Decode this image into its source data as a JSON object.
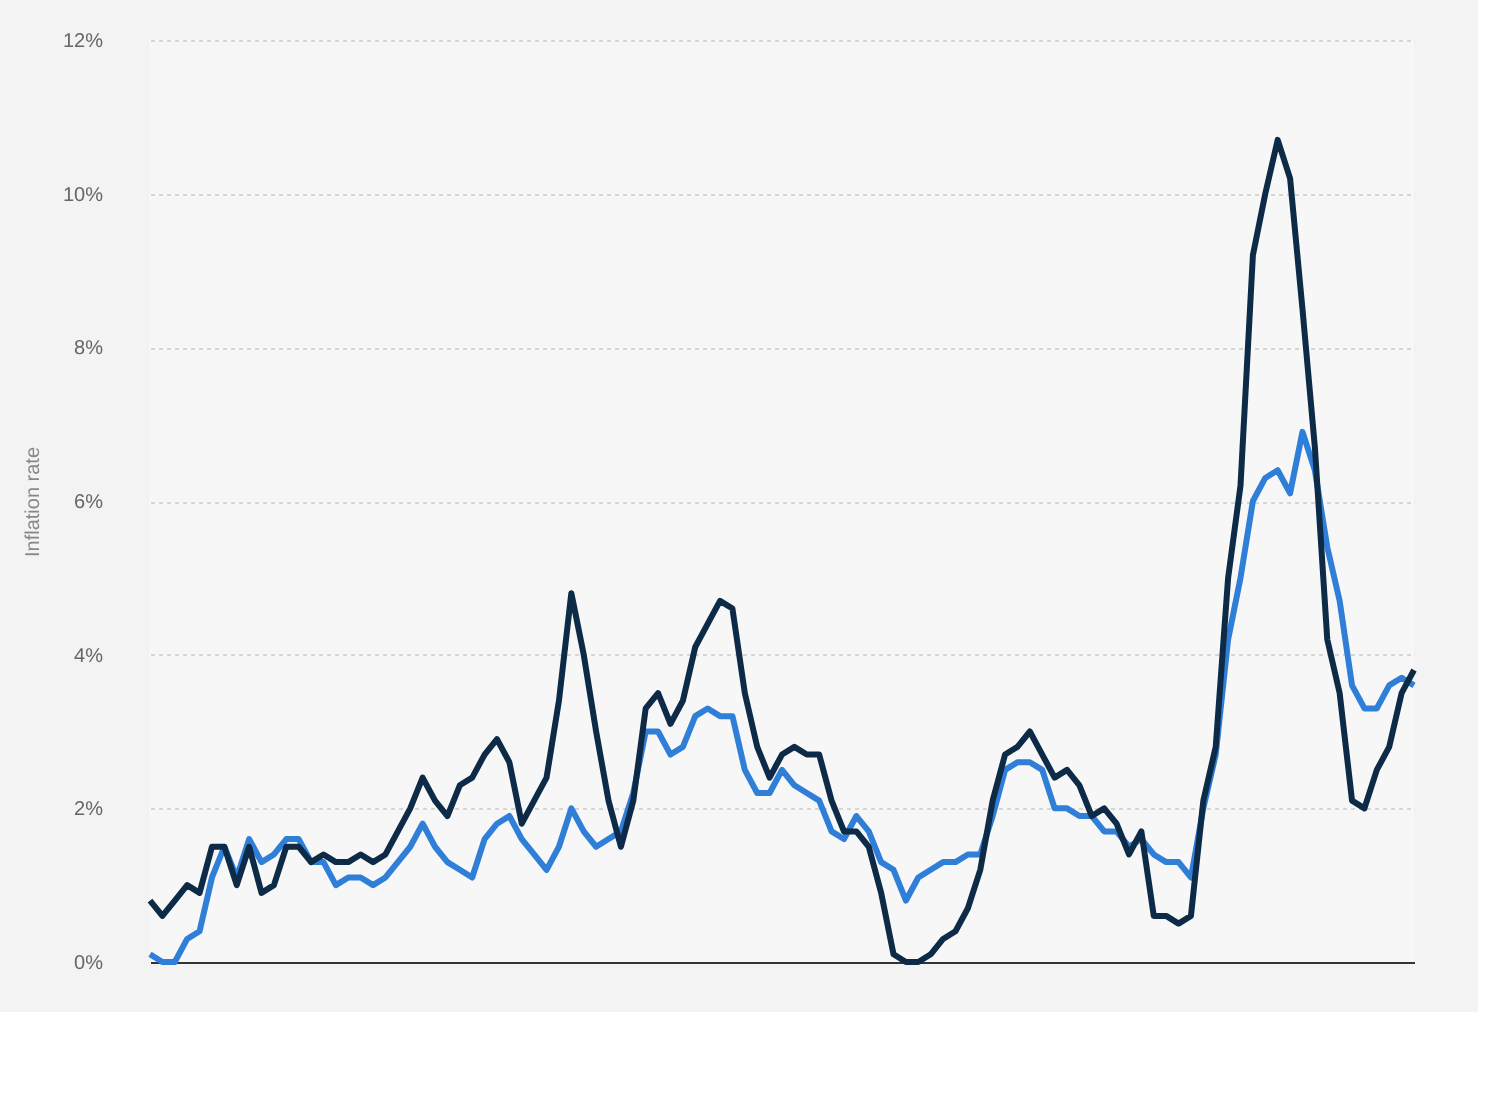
{
  "chart_data": {
    "type": "line",
    "ylabel": "Inflation rate",
    "categories": [
      null,
      null,
      null,
      null,
      null,
      null,
      null,
      null,
      null,
      null,
      null,
      null,
      null,
      null,
      null,
      null,
      null,
      null,
      null,
      null,
      null,
      null,
      null,
      null,
      null,
      null,
      null,
      null,
      null,
      null,
      null,
      null,
      null,
      null,
      null,
      null,
      null,
      null,
      null,
      null,
      null,
      null,
      null,
      null,
      null,
      null,
      null,
      null,
      null,
      null,
      null,
      null,
      null,
      null,
      null,
      null,
      null,
      null,
      null,
      null,
      null,
      null,
      null,
      null,
      null,
      null,
      null,
      null,
      null,
      null,
      null,
      null,
      null,
      null,
      null,
      null,
      null,
      null,
      null,
      null,
      null,
      null,
      null,
      null,
      null,
      null,
      null,
      null,
      null,
      null,
      null,
      null,
      null,
      null,
      null,
      null,
      null,
      null,
      null,
      null,
      null,
      null,
      null
    ],
    "series": [
      {
        "color": "#2f7ed8",
        "values": [
          0.1,
          0.0,
          0.0,
          0.3,
          0.4,
          1.1,
          1.5,
          1.1,
          1.6,
          1.3,
          1.4,
          1.6,
          1.6,
          1.3,
          1.3,
          1.0,
          1.1,
          1.1,
          1.0,
          1.1,
          1.3,
          1.5,
          1.8,
          1.5,
          1.3,
          1.2,
          1.1,
          1.6,
          1.8,
          1.9,
          1.6,
          1.4,
          1.2,
          1.5,
          2.0,
          1.7,
          1.5,
          1.6,
          1.7,
          2.2,
          3.0,
          3.0,
          2.7,
          2.8,
          3.2,
          3.3,
          3.2,
          3.2,
          2.5,
          2.2,
          2.2,
          2.5,
          2.3,
          2.2,
          2.1,
          1.7,
          1.6,
          1.9,
          1.7,
          1.3,
          1.2,
          0.8,
          1.1,
          1.2,
          1.3,
          1.3,
          1.4,
          1.4,
          1.9,
          2.5,
          2.6,
          2.6,
          2.5,
          2.0,
          2.0,
          1.9,
          1.9,
          1.7,
          1.7,
          1.5,
          1.6,
          1.4,
          1.3,
          1.3,
          1.1,
          2.0,
          2.7,
          4.2,
          5.0,
          6.0,
          6.3,
          6.4,
          6.1,
          6.9,
          6.4,
          5.4,
          4.7,
          3.6,
          3.3,
          3.3,
          3.6,
          3.7,
          3.6
        ]
      },
      {
        "color": "#0d2a47",
        "values": [
          0.8,
          0.6,
          0.8,
          1.0,
          0.9,
          1.5,
          1.5,
          1.0,
          1.5,
          0.9,
          1.0,
          1.5,
          1.5,
          1.3,
          1.4,
          1.3,
          1.3,
          1.4,
          1.3,
          1.4,
          1.7,
          2.0,
          2.4,
          2.1,
          1.9,
          2.3,
          2.4,
          2.7,
          2.9,
          2.6,
          1.8,
          2.1,
          2.4,
          3.4,
          4.8,
          4.0,
          3.0,
          2.1,
          1.5,
          2.1,
          3.3,
          3.5,
          3.1,
          3.4,
          4.1,
          4.4,
          4.7,
          4.6,
          3.5,
          2.8,
          2.4,
          2.7,
          2.8,
          2.7,
          2.7,
          2.1,
          1.7,
          1.7,
          1.5,
          0.9,
          0.1,
          0.0,
          0.0,
          0.1,
          0.3,
          0.4,
          0.7,
          1.2,
          2.1,
          2.7,
          2.8,
          3.0,
          2.7,
          2.4,
          2.5,
          2.3,
          1.9,
          2.0,
          1.8,
          1.4,
          1.7,
          0.6,
          0.6,
          0.5,
          0.6,
          2.1,
          2.8,
          5.0,
          6.2,
          9.2,
          10.0,
          10.7,
          10.2,
          8.5,
          6.7,
          4.2,
          3.5,
          2.1,
          2.0,
          2.5,
          2.8,
          3.5,
          3.8
        ]
      }
    ],
    "ylim": [
      0,
      12
    ],
    "yticks": [
      {
        "value": 0,
        "label": "0%"
      },
      {
        "value": 2,
        "label": "2%"
      },
      {
        "value": 4,
        "label": "4%"
      },
      {
        "value": 6,
        "label": "6%"
      },
      {
        "value": 8,
        "label": "8%"
      },
      {
        "value": 10,
        "label": "10%"
      },
      {
        "value": 12,
        "label": "12%"
      }
    ],
    "grid": "y",
    "legend": false,
    "marker": "none",
    "line_style": "solid"
  }
}
